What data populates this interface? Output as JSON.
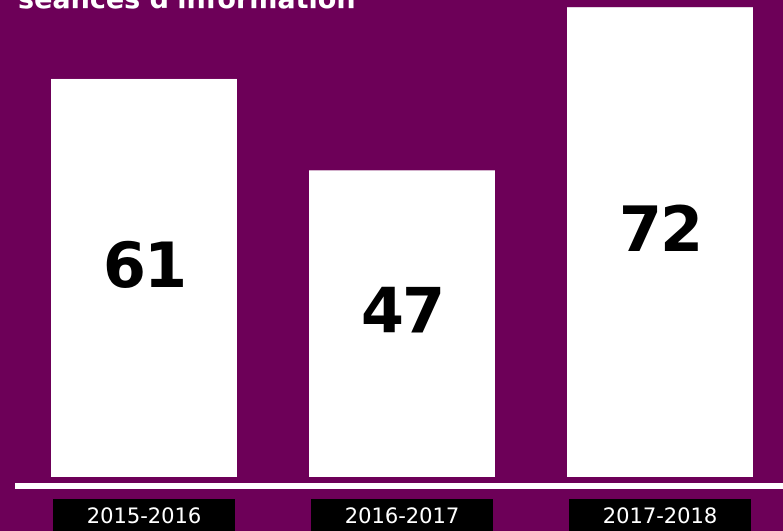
{
  "chart_data": {
    "type": "bar",
    "title": "séances d'information",
    "categories": [
      "2015-2016",
      "2016-2017",
      "2017-2018"
    ],
    "values": [
      61,
      47,
      72
    ],
    "color": "#ffffff",
    "ylim": [
      0,
      73.1
    ]
  }
}
